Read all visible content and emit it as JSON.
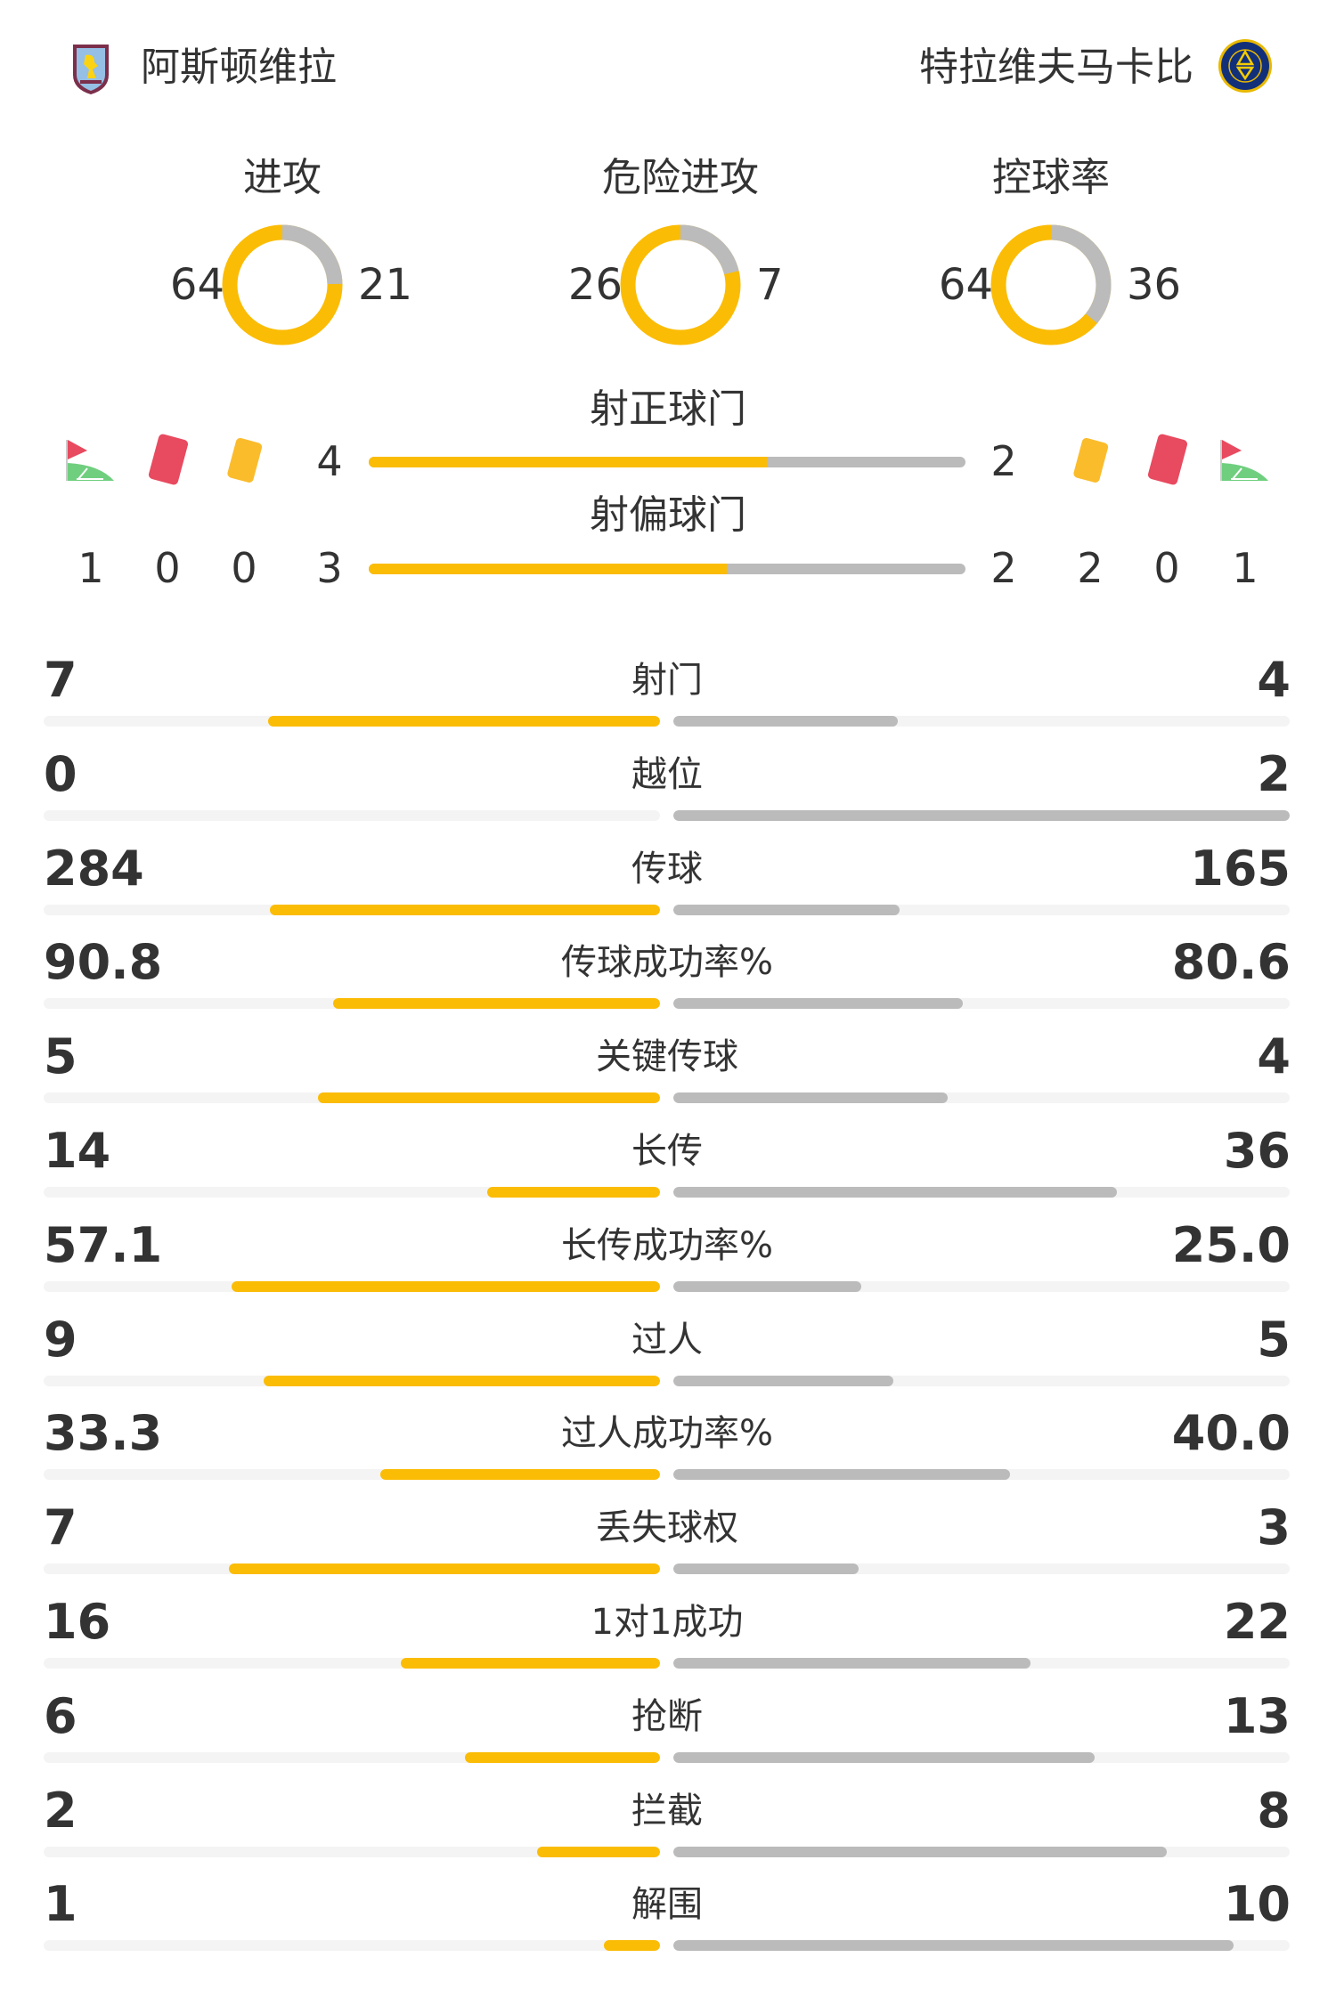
{
  "home": {
    "name": "阿斯顿维拉",
    "logo": "aston-villa-crest"
  },
  "away": {
    "name": "特拉维夫马卡比",
    "logo": "maccabi-tel-aviv-crest"
  },
  "colors": {
    "home": "#fbbc05",
    "away": "#bbbbbb",
    "track": "#f4f4f4",
    "text": "#333333"
  },
  "donuts": [
    {
      "label": "进攻",
      "home": 64,
      "away": 21
    },
    {
      "label": "危险进攻",
      "home": 26,
      "away": 7
    },
    {
      "label": "控球率",
      "home": 64,
      "away": 36
    }
  ],
  "shots_on_target": {
    "label": "射正球门",
    "home": 4,
    "away": 2
  },
  "shots_off_target": {
    "label": "射偏球门",
    "home": 3,
    "away": 2
  },
  "home_events": {
    "corners": 1,
    "red_cards": 0,
    "yellow_cards": 0
  },
  "away_events": {
    "yellow_cards": 2,
    "red_cards": 0,
    "corners": 1
  },
  "stats": [
    {
      "label": "射门",
      "home": "7",
      "away": "4"
    },
    {
      "label": "越位",
      "home": "0",
      "away": "2"
    },
    {
      "label": "传球",
      "home": "284",
      "away": "165"
    },
    {
      "label": "传球成功率%",
      "home": "90.8",
      "away": "80.6"
    },
    {
      "label": "关键传球",
      "home": "5",
      "away": "4"
    },
    {
      "label": "长传",
      "home": "14",
      "away": "36"
    },
    {
      "label": "长传成功率%",
      "home": "57.1",
      "away": "25.0"
    },
    {
      "label": "过人",
      "home": "9",
      "away": "5"
    },
    {
      "label": "过人成功率%",
      "home": "33.3",
      "away": "40.0"
    },
    {
      "label": "丢失球权",
      "home": "7",
      "away": "3"
    },
    {
      "label": "1对1成功",
      "home": "16",
      "away": "22"
    },
    {
      "label": "抢断",
      "home": "6",
      "away": "13"
    },
    {
      "label": "拦截",
      "home": "2",
      "away": "8"
    },
    {
      "label": "解围",
      "home": "1",
      "away": "10"
    }
  ]
}
